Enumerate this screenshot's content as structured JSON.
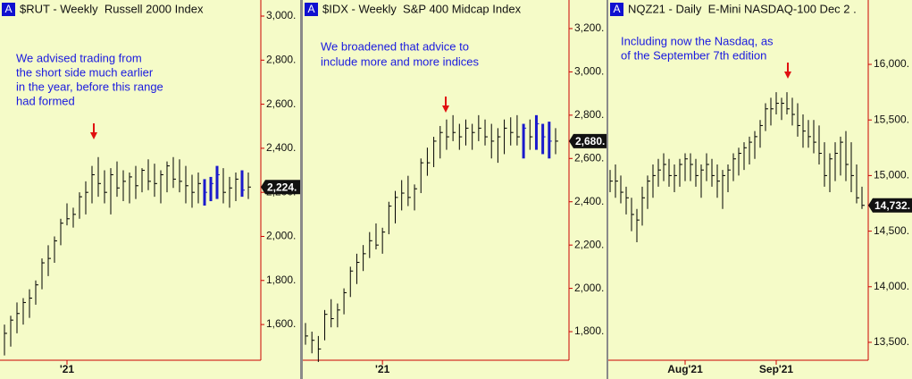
{
  "chart_data": [
    {
      "type": "ohlc",
      "badge": "A",
      "title": "$RUT - Weekly  Russell 2000 Index",
      "annotation": [
        "We advised trading from",
        "the short side much earlier",
        "in the year, before this range",
        "had formed"
      ],
      "categories": [
        null,
        null,
        null,
        null,
        null,
        null,
        null,
        null,
        null,
        null,
        "'21",
        null,
        null,
        null,
        null,
        null,
        null,
        null,
        null,
        null,
        null,
        null,
        null,
        null,
        null,
        null,
        null,
        null,
        null,
        null,
        null,
        null,
        null,
        null,
        null,
        null,
        null,
        null,
        null,
        null
      ],
      "high": [
        1600,
        1640,
        1700,
        1720,
        1760,
        1800,
        1900,
        1960,
        2000,
        2080,
        2150,
        2130,
        2200,
        2250,
        2320,
        2360,
        2300,
        2310,
        2340,
        2300,
        2290,
        2320,
        2310,
        2350,
        2330,
        2300,
        2340,
        2360,
        2350,
        2320,
        2280,
        2290,
        2260,
        2270,
        2320,
        2310,
        2270,
        2290,
        2300,
        2290
      ],
      "low": [
        1460,
        1500,
        1560,
        1600,
        1630,
        1690,
        1760,
        1820,
        1880,
        1960,
        2050,
        2040,
        2080,
        2100,
        2150,
        2180,
        2150,
        2100,
        2180,
        2160,
        2150,
        2170,
        2200,
        2210,
        2180,
        2150,
        2200,
        2220,
        2200,
        2150,
        2130,
        2150,
        2140,
        2160,
        2170,
        2150,
        2130,
        2160,
        2180,
        2170
      ],
      "close": [
        1560,
        1620,
        1650,
        1700,
        1720,
        1780,
        1880,
        1900,
        1980,
        2060,
        2080,
        2100,
        2180,
        2200,
        2280,
        2240,
        2200,
        2280,
        2220,
        2250,
        2270,
        2230,
        2300,
        2250,
        2240,
        2280,
        2320,
        2260,
        2250,
        2230,
        2200,
        2240,
        2200,
        2240,
        2280,
        2200,
        2220,
        2260,
        2210,
        2224
      ],
      "bar_colors": [
        "#000",
        "#000",
        "#000",
        "#000",
        "#000",
        "#000",
        "#000",
        "#000",
        "#000",
        "#000",
        "#000",
        "#000",
        "#000",
        "#000",
        "#000",
        "#000",
        "#000",
        "#000",
        "#000",
        "#000",
        "#000",
        "#000",
        "#000",
        "#000",
        "#000",
        "#000",
        "#000",
        "#000",
        "#000",
        "#000",
        "#000",
        "#000",
        "#1a1acc",
        "#1a1acc",
        "#1a1acc",
        "#000",
        "#000",
        "#000",
        "#1a1acc",
        "#000"
      ],
      "ylim": [
        1438,
        3073
      ],
      "yticks": [
        {
          "value": 1600,
          "label": "1,600."
        },
        {
          "value": 1800,
          "label": "1,800."
        },
        {
          "value": 2000,
          "label": "2,000."
        },
        {
          "value": 2200,
          "label": "2,200."
        },
        {
          "value": 2400,
          "label": "2,400."
        },
        {
          "value": 2600,
          "label": "2,600."
        },
        {
          "value": 2800,
          "label": "2,800."
        },
        {
          "value": 3000,
          "label": "3,000."
        }
      ],
      "last_price": {
        "value": 2224,
        "label": "2,224."
      }
    },
    {
      "type": "ohlc",
      "badge": "A",
      "title": "$IDX - Weekly  S&P 400 Midcap Index",
      "annotation": [
        "We broadened that advice to",
        "include more and more indices"
      ],
      "categories": [
        null,
        null,
        null,
        null,
        null,
        null,
        null,
        null,
        null,
        null,
        null,
        null,
        "'21",
        null,
        null,
        null,
        null,
        null,
        null,
        null,
        null,
        null,
        null,
        null,
        null,
        null,
        null,
        null,
        null,
        null,
        null,
        null,
        null,
        null,
        null,
        null,
        null,
        null,
        null,
        null
      ],
      "high": [
        1840,
        1800,
        1780,
        1900,
        1950,
        1930,
        2000,
        2100,
        2160,
        2200,
        2260,
        2300,
        2280,
        2400,
        2450,
        2500,
        2520,
        2480,
        2600,
        2650,
        2700,
        2750,
        2780,
        2800,
        2760,
        2780,
        2760,
        2800,
        2780,
        2760,
        2740,
        2780,
        2790,
        2800,
        2760,
        2780,
        2800,
        2760,
        2770,
        2740
      ],
      "low": [
        1740,
        1700,
        1660,
        1760,
        1820,
        1820,
        1880,
        1960,
        2020,
        2080,
        2140,
        2180,
        2160,
        2250,
        2300,
        2360,
        2380,
        2360,
        2440,
        2520,
        2560,
        2600,
        2640,
        2680,
        2640,
        2660,
        2640,
        2680,
        2660,
        2600,
        2580,
        2620,
        2660,
        2660,
        2600,
        2640,
        2640,
        2620,
        2600,
        2620
      ],
      "close": [
        1780,
        1760,
        1720,
        1880,
        1860,
        1900,
        1980,
        2080,
        2120,
        2160,
        2220,
        2200,
        2260,
        2380,
        2420,
        2440,
        2420,
        2460,
        2580,
        2580,
        2680,
        2720,
        2700,
        2720,
        2700,
        2740,
        2720,
        2740,
        2700,
        2680,
        2700,
        2740,
        2720,
        2700,
        2740,
        2700,
        2760,
        2700,
        2680,
        2680
      ],
      "bar_colors": [
        "#000",
        "#000",
        "#000",
        "#000",
        "#000",
        "#000",
        "#000",
        "#000",
        "#000",
        "#000",
        "#000",
        "#000",
        "#000",
        "#000",
        "#000",
        "#000",
        "#000",
        "#000",
        "#000",
        "#000",
        "#000",
        "#000",
        "#000",
        "#000",
        "#000",
        "#000",
        "#000",
        "#000",
        "#000",
        "#000",
        "#000",
        "#000",
        "#000",
        "#000",
        "#1a1acc",
        "#000",
        "#1a1acc",
        "#1a1acc",
        "#1a1acc",
        "#000"
      ],
      "ylim": [
        1668,
        3332
      ],
      "yticks": [
        {
          "value": 1800,
          "label": "1,800."
        },
        {
          "value": 2000,
          "label": "2,000."
        },
        {
          "value": 2200,
          "label": "2,200."
        },
        {
          "value": 2400,
          "label": "2,400."
        },
        {
          "value": 2600,
          "label": "2,600."
        },
        {
          "value": 2800,
          "label": "2,800."
        },
        {
          "value": 3000,
          "label": "3,000."
        },
        {
          "value": 3200,
          "label": "3,200."
        }
      ],
      "last_price": {
        "value": 2680,
        "label": "2,680."
      }
    },
    {
      "type": "ohlc",
      "badge": "A",
      "title": "NQZ21 - Daily  E-Mini NASDAQ-100 Dec 2 .",
      "annotation": [
        "Including now the Nasdaq, as",
        "of the September 7th edition"
      ],
      "categories": [
        null,
        null,
        null,
        null,
        null,
        null,
        null,
        null,
        null,
        null,
        null,
        null,
        null,
        null,
        "Aug'21",
        null,
        null,
        null,
        null,
        null,
        null,
        null,
        null,
        null,
        null,
        null,
        null,
        null,
        null,
        null,
        null,
        "Sep'21",
        null,
        null,
        null,
        null,
        null,
        null,
        null,
        null,
        null,
        null,
        null,
        null,
        null,
        null,
        null,
        null
      ],
      "high": [
        15050,
        15100,
        15000,
        14900,
        14800,
        14700,
        14900,
        15000,
        15100,
        15150,
        15200,
        15150,
        15100,
        15150,
        15200,
        15200,
        15150,
        15100,
        15200,
        15150,
        15100,
        15050,
        15100,
        15200,
        15250,
        15300,
        15350,
        15400,
        15500,
        15650,
        15700,
        15750,
        15700,
        15750,
        15700,
        15650,
        15550,
        15500,
        15500,
        15450,
        15300,
        15200,
        15300,
        15350,
        15400,
        15300,
        15100,
        14900
      ],
      "low": [
        14850,
        14800,
        14750,
        14650,
        14500,
        14400,
        14550,
        14700,
        14800,
        14900,
        14950,
        14900,
        14850,
        14900,
        14950,
        14950,
        14900,
        14800,
        14950,
        14900,
        14800,
        14700,
        14850,
        14950,
        15000,
        15050,
        15100,
        15150,
        15250,
        15400,
        15450,
        15550,
        15500,
        15550,
        15450,
        15350,
        15250,
        15250,
        15200,
        15100,
        14900,
        14850,
        14950,
        15000,
        14950,
        14850,
        14750,
        14700
      ],
      "close": [
        14950,
        14950,
        14850,
        14800,
        14650,
        14600,
        14800,
        14950,
        15000,
        15050,
        15100,
        15000,
        15000,
        15100,
        15150,
        15100,
        15000,
        15050,
        15100,
        15000,
        14950,
        15000,
        15050,
        15150,
        15200,
        15250,
        15300,
        15350,
        15450,
        15600,
        15600,
        15650,
        15650,
        15600,
        15550,
        15450,
        15400,
        15350,
        15300,
        15200,
        15000,
        15150,
        15200,
        15300,
        15100,
        15000,
        14800,
        14732
      ],
      "bar_colors": [
        "#000",
        "#000",
        "#000",
        "#000",
        "#000",
        "#000",
        "#000",
        "#000",
        "#000",
        "#000",
        "#000",
        "#000",
        "#000",
        "#000",
        "#000",
        "#000",
        "#000",
        "#000",
        "#000",
        "#000",
        "#000",
        "#000",
        "#000",
        "#000",
        "#000",
        "#000",
        "#000",
        "#000",
        "#000",
        "#000",
        "#000",
        "#000",
        "#000",
        "#000",
        "#000",
        "#000",
        "#000",
        "#000",
        "#000",
        "#000",
        "#000",
        "#000",
        "#000",
        "#000",
        "#000",
        "#000",
        "#000",
        "#000"
      ],
      "ylim": [
        13339,
        16579
      ],
      "yticks": [
        {
          "value": 13500,
          "label": "13,500."
        },
        {
          "value": 14000,
          "label": "14,000."
        },
        {
          "value": 14500,
          "label": "14,500."
        },
        {
          "value": 15000,
          "label": "15,000."
        },
        {
          "value": 15500,
          "label": "15,500."
        },
        {
          "value": 16000,
          "label": "16,000."
        }
      ],
      "last_price": {
        "value": 14732,
        "label": "14,732."
      }
    }
  ]
}
